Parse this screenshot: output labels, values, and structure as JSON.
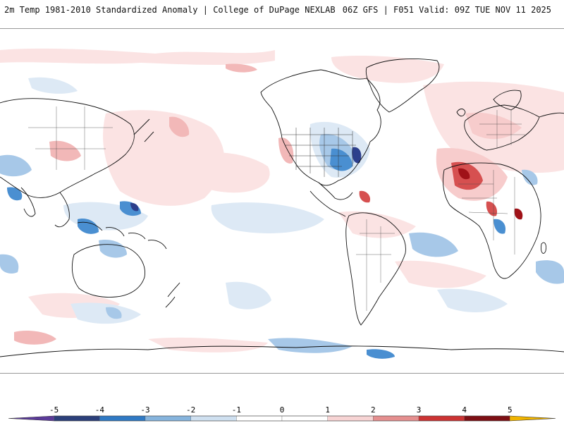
{
  "header": {
    "left_title": "2m Temp 1981-2010 Standardized Anomaly | College of DuPage NEXLAB",
    "right_title": "06Z GFS | F051 Valid: 09Z TUE NOV 11 2025"
  },
  "legend": {
    "labels": [
      "-5",
      "-4",
      "-3",
      "-2",
      "-1",
      "0",
      "1",
      "2",
      "3",
      "4",
      "5"
    ],
    "values": [
      -5,
      -4,
      -3,
      -2,
      -1,
      0,
      1,
      2,
      3,
      4,
      5
    ],
    "range": [
      -6,
      6
    ],
    "colors": {
      "below_min": "#5b3b99",
      "bins": [
        "#2b3f7a",
        "#2f79c4",
        "#86b4dd",
        "#cfe0f0",
        "#ffffff",
        "#ffffff",
        "#f7d4d4",
        "#e58f8f",
        "#cc3333",
        "#7d0f14"
      ],
      "above_max": "#f0b400"
    }
  },
  "map": {
    "colors": {
      "land_outline": "#111111",
      "weak_warm": "#fbe3e3",
      "warm": "#f2b8b8",
      "strong_warm": "#d65050",
      "very_strong_warm": "#a01218",
      "weak_cold": "#dde9f5",
      "cold": "#a7c8e8",
      "strong_cold": "#4a8fd1",
      "very_strong_cold": "#2c3f8c"
    }
  }
}
